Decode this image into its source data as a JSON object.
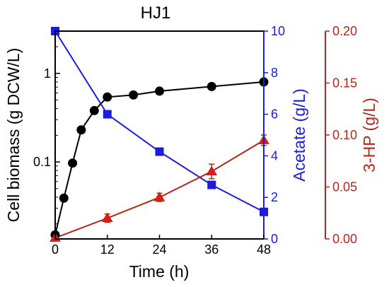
{
  "chart_data": {
    "type": "line",
    "title": "HJ1",
    "xlabel": "Time (h)",
    "x_ticks": [
      0,
      12,
      24,
      36,
      48
    ],
    "xlim": [
      0,
      48
    ],
    "axes": {
      "left": {
        "label": "Cell biomass (g DCW/L)",
        "scale": "log",
        "ylim": [
          0.0135,
          3.0
        ],
        "ticks": [
          {
            "value": 0.1,
            "label": "0.1"
          },
          {
            "value": 1,
            "label": "1"
          }
        ],
        "color": "#000000"
      },
      "right1": {
        "label": "Acetate (g/L)",
        "scale": "linear",
        "ylim": [
          0,
          10
        ],
        "ticks": [
          0,
          2,
          4,
          6,
          8,
          10
        ],
        "color": "#1c1cdc"
      },
      "right2": {
        "label": "3-HP (g/L)",
        "scale": "linear",
        "ylim": [
          0,
          0.2
        ],
        "ticks": [
          "0.00",
          "0.05",
          "0.10",
          "0.15",
          "0.20"
        ],
        "color": "#b5271a"
      }
    },
    "series": [
      {
        "name": "Cell biomass",
        "axis": "left",
        "marker": "circle",
        "color": "#000000",
        "x": [
          0,
          2,
          4,
          6,
          9,
          12,
          18,
          24,
          36,
          48
        ],
        "y": [
          0.015,
          0.039,
          0.097,
          0.23,
          0.38,
          0.54,
          0.57,
          0.63,
          0.71,
          0.8
        ]
      },
      {
        "name": "Acetate",
        "axis": "right1",
        "marker": "square",
        "color": "#1c1cdc",
        "x": [
          0,
          12,
          24,
          36,
          48
        ],
        "y": [
          10.0,
          6.0,
          4.2,
          2.6,
          1.3
        ]
      },
      {
        "name": "3-HP",
        "axis": "right2",
        "marker": "triangle",
        "color": "#b5271a",
        "marker_fill": "#e31a1a",
        "x": [
          0,
          12,
          24,
          36,
          48
        ],
        "y": [
          0.001,
          0.02,
          0.04,
          0.065,
          0.095
        ],
        "err": [
          0,
          0.004,
          0.004,
          0.007,
          0.005
        ]
      }
    ]
  }
}
